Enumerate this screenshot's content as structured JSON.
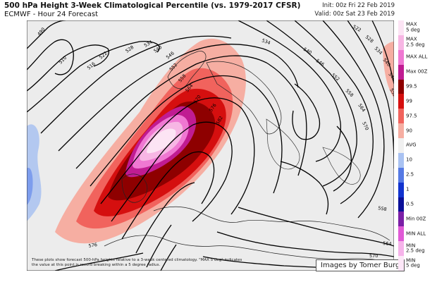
{
  "header": {
    "title": "500 hPa Height 3-Week Climatological Percentile (vs. 1979-2017 CFSR)",
    "subtitle": "ECMWF - Hour 24 Forecast",
    "init": "Init: 00z Fri 22 Feb 2019",
    "valid": "Valid: 00z Sat 23 Feb 2019"
  },
  "map": {
    "contour_labels": [
      "490",
      "510",
      "516",
      "522",
      "528",
      "534",
      "540",
      "546",
      "552",
      "558",
      "564",
      "570",
      "576",
      "582",
      "534",
      "540",
      "546",
      "552",
      "558",
      "564",
      "570",
      "522",
      "528",
      "534",
      "540",
      "546",
      "552",
      "558",
      "564",
      "570",
      "576"
    ],
    "footnote": "These plots show forecast 500-hPa heights relative to a 3-week centered climatology. \"MAX 5 deg\" indicates the value at this point is record breaking within a 5 degree radius.",
    "credit": "Images by Tomer Burg"
  },
  "legend": [
    {
      "label": "MAX\n5 deg",
      "color": "#fce4f4"
    },
    {
      "label": "MAX\n2.5 deg",
      "color": "#f7b6e4"
    },
    {
      "label": "MAX ALL",
      "color": "#ef78d2"
    },
    {
      "label": "Max 00Z",
      "color": "#c01c92"
    },
    {
      "label": "99.5",
      "color": "#8e0000"
    },
    {
      "label": "99",
      "color": "#d50f0f"
    },
    {
      "label": "97.5",
      "color": "#f1635d"
    },
    {
      "label": "90",
      "color": "#f6aea2"
    },
    {
      "label": "AVG",
      "color": "#f0f0f0"
    },
    {
      "label": "10",
      "color": "#a9c2f2"
    },
    {
      "label": "2.5",
      "color": "#5579e4"
    },
    {
      "label": "1",
      "color": "#1233cf"
    },
    {
      "label": "0.5",
      "color": "#0a0f98"
    },
    {
      "label": "Min 00Z",
      "color": "#7b1fa6"
    },
    {
      "label": "MIN ALL",
      "color": "#e05ad6"
    },
    {
      "label": "MIN\n2.5 deg",
      "color": "#f6b3ea"
    },
    {
      "label": "MIN\n5 deg",
      "color": "#fde7f8"
    }
  ]
}
